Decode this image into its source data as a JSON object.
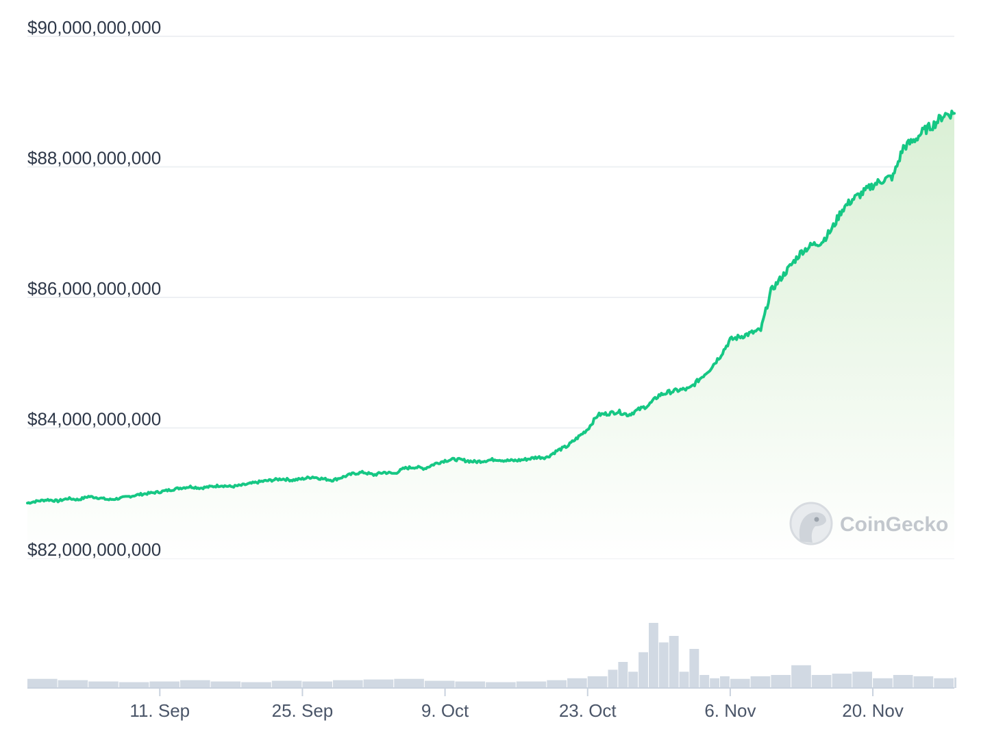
{
  "chart_data": {
    "type": "line",
    "y_tick_labels": [
      "$90,000,000,000",
      "$88,000,000,000",
      "$86,000,000,000",
      "$84,000,000,000",
      "$82,000,000,000"
    ],
    "y_ticks": [
      90000000000,
      88000000000,
      86000000000,
      84000000000,
      82000000000
    ],
    "ylim": [
      82000000000,
      90000000000
    ],
    "x_tick_labels": [
      "11. Sep",
      "25. Sep",
      "9. Oct",
      "23. Oct",
      "6. Nov",
      "20. Nov"
    ],
    "x_ticks": [
      "2023-09-11",
      "2023-09-25",
      "2023-10-09",
      "2023-10-23",
      "2023-11-06",
      "2023-11-20"
    ],
    "xlim": [
      "2023-08-29",
      "2023-11-28"
    ],
    "grid": true,
    "colors": {
      "line": "#16c784",
      "area_top": "#d8efd3",
      "area_bottom": "#ffffff",
      "grid": "#eef0f3",
      "volume": "#c9d2de"
    },
    "series": [
      {
        "values": [
          [
            "2023-08-29",
            82.85
          ],
          [
            "2023-08-30",
            82.88
          ],
          [
            "2023-08-31",
            82.9
          ],
          [
            "2023-09-01",
            82.88
          ],
          [
            "2023-09-02",
            82.92
          ],
          [
            "2023-09-03",
            82.9
          ],
          [
            "2023-09-04",
            82.95
          ],
          [
            "2023-09-05",
            82.93
          ],
          [
            "2023-09-06",
            82.9
          ],
          [
            "2023-09-07",
            82.92
          ],
          [
            "2023-09-08",
            82.95
          ],
          [
            "2023-09-09",
            82.98
          ],
          [
            "2023-09-10",
            83.0
          ],
          [
            "2023-09-11",
            83.02
          ],
          [
            "2023-09-12",
            83.05
          ],
          [
            "2023-09-13",
            83.08
          ],
          [
            "2023-09-14",
            83.1
          ],
          [
            "2023-09-15",
            83.08
          ],
          [
            "2023-09-16",
            83.1
          ],
          [
            "2023-09-17",
            83.12
          ],
          [
            "2023-09-18",
            83.1
          ],
          [
            "2023-09-19",
            83.12
          ],
          [
            "2023-09-20",
            83.15
          ],
          [
            "2023-09-21",
            83.18
          ],
          [
            "2023-09-22",
            83.2
          ],
          [
            "2023-09-23",
            83.22
          ],
          [
            "2023-09-24",
            83.2
          ],
          [
            "2023-09-25",
            83.22
          ],
          [
            "2023-09-26",
            83.25
          ],
          [
            "2023-09-27",
            83.22
          ],
          [
            "2023-09-28",
            83.2
          ],
          [
            "2023-09-29",
            83.25
          ],
          [
            "2023-09-30",
            83.3
          ],
          [
            "2023-10-01",
            83.32
          ],
          [
            "2023-10-02",
            83.28
          ],
          [
            "2023-10-03",
            83.32
          ],
          [
            "2023-10-04",
            83.3
          ],
          [
            "2023-10-05",
            83.38
          ],
          [
            "2023-10-06",
            83.4
          ],
          [
            "2023-10-07",
            83.38
          ],
          [
            "2023-10-08",
            83.45
          ],
          [
            "2023-10-09",
            83.5
          ],
          [
            "2023-10-10",
            83.52
          ],
          [
            "2023-10-11",
            83.5
          ],
          [
            "2023-10-12",
            83.48
          ],
          [
            "2023-10-13",
            83.5
          ],
          [
            "2023-10-14",
            83.52
          ],
          [
            "2023-10-15",
            83.5
          ],
          [
            "2023-10-16",
            83.5
          ],
          [
            "2023-10-17",
            83.52
          ],
          [
            "2023-10-18",
            83.55
          ],
          [
            "2023-10-19",
            83.55
          ],
          [
            "2023-10-20",
            83.65
          ],
          [
            "2023-10-21",
            83.72
          ],
          [
            "2023-10-22",
            83.85
          ],
          [
            "2023-10-23",
            83.98
          ],
          [
            "2023-10-24",
            84.2
          ],
          [
            "2023-10-25",
            84.22
          ],
          [
            "2023-10-26",
            84.25
          ],
          [
            "2023-10-27",
            84.2
          ],
          [
            "2023-10-28",
            84.28
          ],
          [
            "2023-10-29",
            84.35
          ],
          [
            "2023-10-30",
            84.5
          ],
          [
            "2023-10-31",
            84.55
          ],
          [
            "2023-11-01",
            84.58
          ],
          [
            "2023-11-02",
            84.6
          ],
          [
            "2023-11-03",
            84.75
          ],
          [
            "2023-11-04",
            84.9
          ],
          [
            "2023-11-05",
            85.1
          ],
          [
            "2023-11-06",
            85.35
          ],
          [
            "2023-11-07",
            85.4
          ],
          [
            "2023-11-08",
            85.45
          ],
          [
            "2023-11-09",
            85.5
          ],
          [
            "2023-11-10",
            86.1
          ],
          [
            "2023-11-11",
            86.3
          ],
          [
            "2023-11-12",
            86.5
          ],
          [
            "2023-11-13",
            86.7
          ],
          [
            "2023-11-14",
            86.8
          ],
          [
            "2023-11-15",
            86.85
          ],
          [
            "2023-11-16",
            87.05
          ],
          [
            "2023-11-17",
            87.35
          ],
          [
            "2023-11-18",
            87.5
          ],
          [
            "2023-11-19",
            87.6
          ],
          [
            "2023-11-20",
            87.72
          ],
          [
            "2023-11-21",
            87.8
          ],
          [
            "2023-11-22",
            87.85
          ],
          [
            "2023-11-23",
            88.3
          ],
          [
            "2023-11-24",
            88.4
          ],
          [
            "2023-11-25",
            88.55
          ],
          [
            "2023-11-26",
            88.65
          ],
          [
            "2023-11-27",
            88.8
          ],
          [
            "2023-11-28",
            88.82
          ]
        ]
      }
    ],
    "volume": {
      "values": [
        [
          "2023-08-29",
          0.14
        ],
        [
          "2023-09-01",
          0.12
        ],
        [
          "2023-09-04",
          0.1
        ],
        [
          "2023-09-07",
          0.09
        ],
        [
          "2023-09-10",
          0.1
        ],
        [
          "2023-09-13",
          0.12
        ],
        [
          "2023-09-16",
          0.1
        ],
        [
          "2023-09-19",
          0.09
        ],
        [
          "2023-09-22",
          0.11
        ],
        [
          "2023-09-25",
          0.1
        ],
        [
          "2023-09-28",
          0.12
        ],
        [
          "2023-10-01",
          0.13
        ],
        [
          "2023-10-04",
          0.14
        ],
        [
          "2023-10-07",
          0.11
        ],
        [
          "2023-10-10",
          0.1
        ],
        [
          "2023-10-13",
          0.09
        ],
        [
          "2023-10-16",
          0.1
        ],
        [
          "2023-10-19",
          0.12
        ],
        [
          "2023-10-21",
          0.15
        ],
        [
          "2023-10-23",
          0.18
        ],
        [
          "2023-10-25",
          0.28
        ],
        [
          "2023-10-26",
          0.4
        ],
        [
          "2023-10-27",
          0.25
        ],
        [
          "2023-10-28",
          0.55
        ],
        [
          "2023-10-29",
          1.0
        ],
        [
          "2023-10-30",
          0.7
        ],
        [
          "2023-10-31",
          0.8
        ],
        [
          "2023-11-01",
          0.25
        ],
        [
          "2023-11-02",
          0.6
        ],
        [
          "2023-11-03",
          0.2
        ],
        [
          "2023-11-04",
          0.15
        ],
        [
          "2023-11-05",
          0.18
        ],
        [
          "2023-11-06",
          0.14
        ],
        [
          "2023-11-08",
          0.18
        ],
        [
          "2023-11-10",
          0.2
        ],
        [
          "2023-11-12",
          0.35
        ],
        [
          "2023-11-14",
          0.2
        ],
        [
          "2023-11-16",
          0.22
        ],
        [
          "2023-11-18",
          0.25
        ],
        [
          "2023-11-20",
          0.15
        ],
        [
          "2023-11-22",
          0.2
        ],
        [
          "2023-11-24",
          0.18
        ],
        [
          "2023-11-26",
          0.15
        ],
        [
          "2023-11-28",
          0.16
        ]
      ]
    }
  },
  "watermark": {
    "text": "CoinGecko",
    "icon": "coingecko-gecko-logo"
  }
}
